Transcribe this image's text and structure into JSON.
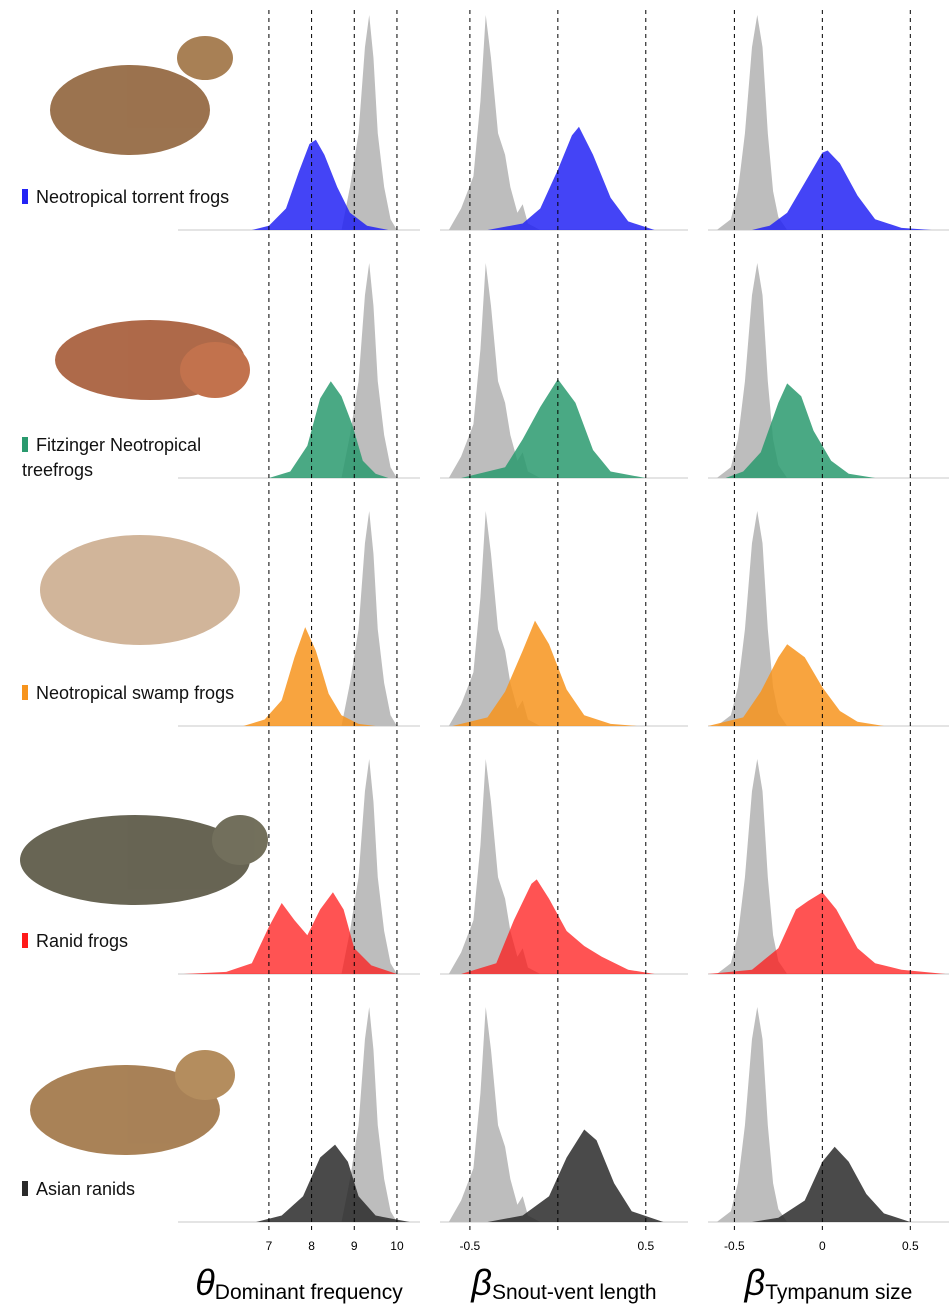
{
  "legend": [
    {
      "name": "Neotropical torrent frogs",
      "color": "#2323f5"
    },
    {
      "name": "Fitzinger Neotropical treefrogs",
      "color": "#2a9a6e"
    },
    {
      "name": "Neotropical swamp frogs",
      "color": "#f7941d"
    },
    {
      "name": "Ranid frogs",
      "color": "#ff1a1a"
    },
    {
      "name": "Asian ranids",
      "color": "#2a2a2a"
    }
  ],
  "chart_data": [
    {
      "type": "density",
      "xlabel_symbol": "θ",
      "xlabel": "Dominant frequency",
      "xlim": [
        4.87,
        10.54
      ],
      "xticks": [
        7,
        8,
        9,
        10
      ],
      "vlines": [
        7,
        8,
        9,
        10
      ],
      "reference": {
        "color": "#bdbdbd",
        "x": [
          8.7,
          8.9,
          9.1,
          9.25,
          9.35,
          9.45,
          9.55,
          9.7,
          9.85,
          10.0
        ],
        "values": [
          0,
          0.2,
          0.45,
          0.85,
          1.0,
          0.8,
          0.45,
          0.2,
          0.05,
          0
        ]
      },
      "series": [
        {
          "color": "#2323f5",
          "x": [
            6.6,
            7.0,
            7.4,
            7.7,
            7.95,
            8.1,
            8.3,
            8.6,
            8.9,
            9.3,
            9.8
          ],
          "values": [
            0,
            0.02,
            0.1,
            0.27,
            0.4,
            0.42,
            0.35,
            0.2,
            0.08,
            0.02,
            0
          ]
        },
        {
          "color": "#2a9a6e",
          "x": [
            7.0,
            7.5,
            7.9,
            8.2,
            8.45,
            8.7,
            8.95,
            9.2,
            9.5,
            9.8
          ],
          "values": [
            0,
            0.03,
            0.15,
            0.37,
            0.45,
            0.38,
            0.25,
            0.08,
            0.02,
            0
          ]
        },
        {
          "color": "#f7941d",
          "x": [
            6.4,
            6.9,
            7.3,
            7.6,
            7.85,
            8.1,
            8.4,
            8.7,
            9.1,
            9.5
          ],
          "values": [
            0,
            0.03,
            0.12,
            0.32,
            0.46,
            0.35,
            0.15,
            0.05,
            0.01,
            0
          ]
        },
        {
          "color": "#ff1a1a",
          "x": [
            5.0,
            6.0,
            6.6,
            7.0,
            7.3,
            7.6,
            7.9,
            8.2,
            8.5,
            8.75,
            9.0,
            9.4,
            10.0
          ],
          "values": [
            0,
            0.01,
            0.05,
            0.22,
            0.33,
            0.25,
            0.18,
            0.3,
            0.38,
            0.3,
            0.12,
            0.04,
            0
          ]
        },
        {
          "color": "#2a2a2a",
          "x": [
            6.7,
            7.3,
            7.8,
            8.2,
            8.55,
            8.85,
            9.1,
            9.5,
            10.3
          ],
          "values": [
            0,
            0.03,
            0.12,
            0.3,
            0.36,
            0.28,
            0.12,
            0.03,
            0
          ]
        }
      ]
    },
    {
      "type": "density",
      "xlabel_symbol": "β",
      "xlabel": "Snout-vent length",
      "xlim": [
        -0.67,
        0.74
      ],
      "xticks": [
        -0.5,
        0.5
      ],
      "vlines": [
        -0.5,
        0,
        0.5
      ],
      "reference": {
        "color": "#bdbdbd",
        "x": [
          -0.62,
          -0.55,
          -0.48,
          -0.44,
          -0.41,
          -0.38,
          -0.34,
          -0.3,
          -0.27,
          -0.23,
          -0.2,
          -0.17,
          -0.1
        ],
        "values": [
          0,
          0.1,
          0.25,
          0.6,
          1.0,
          0.8,
          0.45,
          0.35,
          0.2,
          0.08,
          0.12,
          0.03,
          0
        ]
      },
      "series": [
        {
          "color": "#2323f5",
          "x": [
            -0.4,
            -0.2,
            -0.1,
            0,
            0.08,
            0.12,
            0.2,
            0.3,
            0.4,
            0.55
          ],
          "values": [
            0,
            0.03,
            0.1,
            0.28,
            0.44,
            0.48,
            0.35,
            0.15,
            0.04,
            0
          ]
        },
        {
          "color": "#2a9a6e",
          "x": [
            -0.55,
            -0.3,
            -0.2,
            -0.1,
            0,
            0.1,
            0.2,
            0.3,
            0.5
          ],
          "values": [
            0,
            0.05,
            0.18,
            0.33,
            0.46,
            0.35,
            0.13,
            0.03,
            0
          ]
        },
        {
          "color": "#f7941d",
          "x": [
            -0.6,
            -0.4,
            -0.3,
            -0.2,
            -0.13,
            -0.05,
            0.05,
            0.15,
            0.3,
            0.45
          ],
          "values": [
            0,
            0.04,
            0.16,
            0.35,
            0.49,
            0.38,
            0.17,
            0.05,
            0.01,
            0
          ]
        },
        {
          "color": "#ff1a1a",
          "x": [
            -0.55,
            -0.35,
            -0.25,
            -0.15,
            -0.12,
            -0.05,
            0.05,
            0.15,
            0.25,
            0.4,
            0.55
          ],
          "values": [
            0,
            0.05,
            0.25,
            0.42,
            0.44,
            0.35,
            0.2,
            0.13,
            0.08,
            0.02,
            0
          ]
        },
        {
          "color": "#2a2a2a",
          "x": [
            -0.4,
            -0.2,
            -0.05,
            0.05,
            0.15,
            0.22,
            0.32,
            0.42,
            0.6
          ],
          "values": [
            0,
            0.03,
            0.12,
            0.3,
            0.43,
            0.38,
            0.18,
            0.05,
            0
          ]
        }
      ]
    },
    {
      "type": "density",
      "xlabel_symbol": "β",
      "xlabel": "Tympanum size",
      "xlim": [
        -0.65,
        0.72
      ],
      "xticks": [
        -0.5,
        0,
        0.5
      ],
      "vlines": [
        -0.5,
        0,
        0.5
      ],
      "reference": {
        "color": "#bdbdbd",
        "x": [
          -0.6,
          -0.52,
          -0.48,
          -0.44,
          -0.4,
          -0.37,
          -0.34,
          -0.31,
          -0.28,
          -0.25,
          -0.2
        ],
        "values": [
          0,
          0.05,
          0.18,
          0.45,
          0.85,
          1.0,
          0.85,
          0.45,
          0.18,
          0.06,
          0
        ]
      },
      "series": [
        {
          "color": "#2323f5",
          "x": [
            -0.4,
            -0.3,
            -0.2,
            -0.1,
            0,
            0.03,
            0.1,
            0.2,
            0.3,
            0.45,
            0.62
          ],
          "values": [
            0,
            0.02,
            0.08,
            0.22,
            0.36,
            0.37,
            0.31,
            0.16,
            0.05,
            0.01,
            0
          ]
        },
        {
          "color": "#2a9a6e",
          "x": [
            -0.55,
            -0.45,
            -0.35,
            -0.25,
            -0.2,
            -0.12,
            -0.05,
            0.05,
            0.15,
            0.3
          ],
          "values": [
            0,
            0.03,
            0.12,
            0.35,
            0.44,
            0.38,
            0.22,
            0.08,
            0.02,
            0
          ]
        },
        {
          "color": "#f7941d",
          "x": [
            -0.65,
            -0.45,
            -0.35,
            -0.25,
            -0.2,
            -0.1,
            0,
            0.1,
            0.2,
            0.35
          ],
          "values": [
            0,
            0.04,
            0.16,
            0.32,
            0.38,
            0.32,
            0.18,
            0.07,
            0.02,
            0
          ]
        },
        {
          "color": "#ff1a1a",
          "x": [
            -0.65,
            -0.4,
            -0.25,
            -0.15,
            -0.08,
            0,
            0.08,
            0.2,
            0.3,
            0.45,
            0.7
          ],
          "values": [
            0,
            0.02,
            0.12,
            0.3,
            0.34,
            0.38,
            0.3,
            0.12,
            0.05,
            0.02,
            0
          ]
        },
        {
          "color": "#2a2a2a",
          "x": [
            -0.4,
            -0.25,
            -0.1,
            0,
            0.07,
            0.15,
            0.25,
            0.35,
            0.5
          ],
          "values": [
            0,
            0.02,
            0.1,
            0.28,
            0.35,
            0.28,
            0.13,
            0.04,
            0
          ]
        }
      ]
    }
  ]
}
